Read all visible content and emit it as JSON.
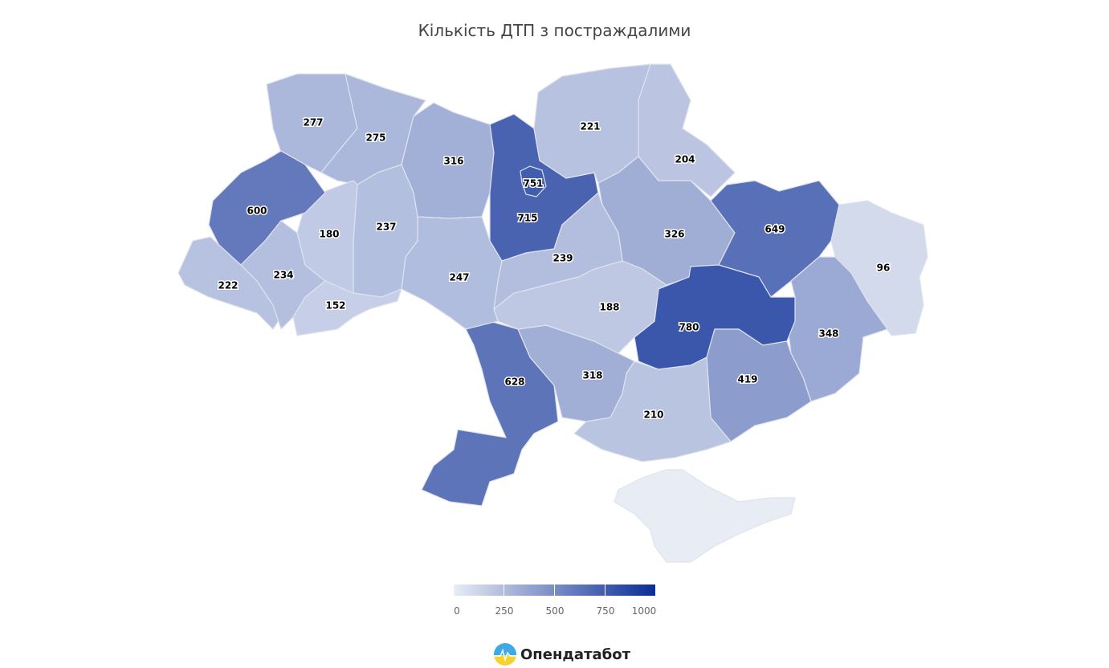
{
  "title": "Кількість ДТП з постраждалими",
  "color_scale": {
    "min": 0,
    "max": 1000,
    "min_color": "#e8ecf5",
    "max_color": "#0a2d96"
  },
  "legend": {
    "ticks": [
      "0",
      "250",
      "500",
      "750",
      "1000"
    ]
  },
  "regions": [
    {
      "value": 277
    },
    {
      "value": 275
    },
    {
      "value": 316
    },
    {
      "value": 715
    },
    {
      "value": 751
    },
    {
      "value": 221
    },
    {
      "value": 204
    },
    {
      "value": 326
    },
    {
      "value": 649
    },
    {
      "value": 96
    },
    {
      "value": 348
    },
    {
      "value": 780
    },
    {
      "value": 419
    },
    {
      "value": 210
    },
    {
      "value": 318
    },
    {
      "value": 628
    },
    {
      "value": 188
    },
    {
      "value": 239
    },
    {
      "value": 247
    },
    {
      "value": 237
    },
    {
      "value": 180
    },
    {
      "value": 600
    },
    {
      "value": 222
    },
    {
      "value": 234
    },
    {
      "value": 152
    },
    {
      "value": null
    }
  ],
  "logo": {
    "text": "Опендатабот"
  }
}
